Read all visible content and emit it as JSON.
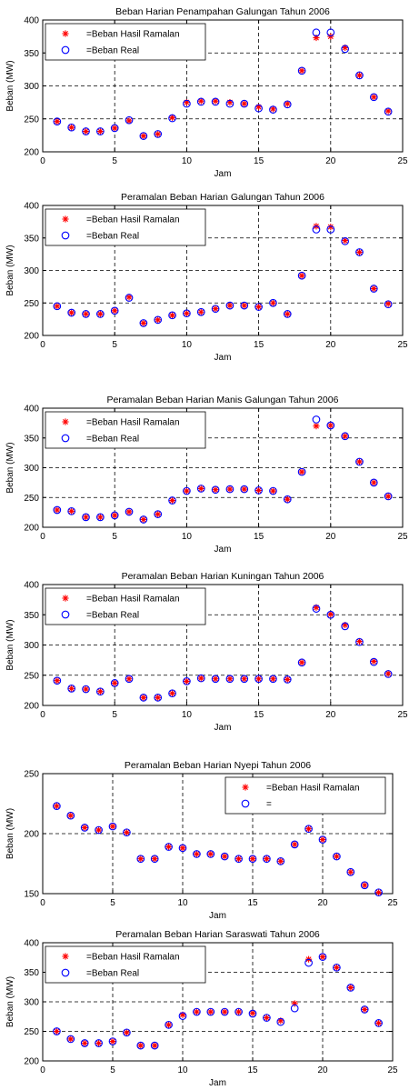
{
  "chart_data": [
    {
      "type": "scatter",
      "title": "Beban Harian Penampahan Galungan Tahun 2006",
      "xlabel": "Jam",
      "ylabel": "Beban (MW)",
      "xlim": [
        0,
        25
      ],
      "ylim": [
        200,
        400
      ],
      "xticks": [
        "0",
        "5",
        "10",
        "15",
        "20",
        "25"
      ],
      "yticks": [
        "200",
        "250",
        "300",
        "350",
        "400"
      ],
      "grid": true,
      "legend_placement": "top-left",
      "series": [
        {
          "name": "=Beban Hasil Ramalan",
          "marker": "star",
          "color": "#ff0000",
          "x": [
            1,
            2,
            3,
            4,
            5,
            6,
            7,
            8,
            9,
            10,
            11,
            12,
            13,
            14,
            15,
            16,
            17,
            18,
            19,
            20,
            21,
            22,
            23,
            24
          ],
          "y": [
            246,
            237,
            231,
            231,
            236,
            247,
            224,
            227,
            252,
            275,
            277,
            277,
            275,
            273,
            268,
            265,
            273,
            323,
            373,
            375,
            358,
            316,
            283,
            262
          ]
        },
        {
          "name": "=Beban Real",
          "marker": "circle",
          "color": "#0000ff",
          "x": [
            1,
            2,
            3,
            4,
            5,
            6,
            7,
            8,
            9,
            10,
            11,
            12,
            13,
            14,
            15,
            16,
            17,
            18,
            19,
            20,
            21,
            22,
            23,
            24
          ],
          "y": [
            246,
            237,
            231,
            231,
            236,
            248,
            224,
            227,
            251,
            273,
            276,
            276,
            273,
            273,
            266,
            264,
            272,
            323,
            381,
            381,
            356,
            316,
            283,
            261
          ]
        }
      ]
    },
    {
      "type": "scatter",
      "title": "Peramalan Beban Harian Galungan Tahun 2006",
      "xlabel": "Jam",
      "ylabel": "Beban (MW)",
      "xlim": [
        0,
        25
      ],
      "ylim": [
        200,
        400
      ],
      "xticks": [
        "0",
        "5",
        "10",
        "15",
        "20",
        "25"
      ],
      "yticks": [
        "200",
        "250",
        "300",
        "350",
        "400"
      ],
      "grid": true,
      "legend_placement": "top-left",
      "series": [
        {
          "name": "=Beban Hasil Ramalan",
          "marker": "star",
          "color": "#ff0000",
          "x": [
            1,
            2,
            3,
            4,
            5,
            6,
            7,
            8,
            9,
            10,
            11,
            12,
            13,
            14,
            15,
            16,
            17,
            18,
            19,
            20,
            21,
            22,
            23,
            24
          ],
          "y": [
            245,
            235,
            233,
            233,
            238,
            259,
            219,
            224,
            231,
            234,
            236,
            241,
            246,
            246,
            244,
            250,
            233,
            292,
            368,
            367,
            346,
            328,
            272,
            249
          ]
        },
        {
          "name": "=Beban Real",
          "marker": "circle",
          "color": "#0000ff",
          "x": [
            1,
            2,
            3,
            4,
            5,
            6,
            7,
            8,
            9,
            10,
            11,
            12,
            13,
            14,
            15,
            16,
            17,
            18,
            19,
            20,
            21,
            22,
            23,
            24
          ],
          "y": [
            245,
            235,
            233,
            233,
            238,
            258,
            219,
            224,
            231,
            234,
            236,
            241,
            246,
            246,
            244,
            250,
            233,
            292,
            363,
            363,
            345,
            328,
            272,
            248
          ]
        }
      ]
    },
    {
      "type": "scatter",
      "title": "Peramalan Beban Harian Manis Galungan Tahun 2006",
      "xlabel": "Jam",
      "ylabel": "Beban (MW)",
      "xlim": [
        0,
        25
      ],
      "ylim": [
        200,
        400
      ],
      "xticks": [
        "0",
        "5",
        "10",
        "15",
        "20",
        "25"
      ],
      "yticks": [
        "200",
        "250",
        "300",
        "350",
        "400"
      ],
      "grid": true,
      "legend_placement": "top-left",
      "series": [
        {
          "name": "=Beban Hasil Ramalan",
          "marker": "star",
          "color": "#ff0000",
          "x": [
            1,
            2,
            3,
            4,
            5,
            6,
            7,
            8,
            9,
            10,
            11,
            12,
            13,
            14,
            15,
            16,
            17,
            18,
            19,
            20,
            21,
            22,
            23,
            24
          ],
          "y": [
            229,
            227,
            217,
            217,
            220,
            226,
            213,
            222,
            245,
            261,
            265,
            263,
            264,
            264,
            262,
            261,
            247,
            293,
            370,
            371,
            353,
            310,
            275,
            252
          ]
        },
        {
          "name": "=Beban Real",
          "marker": "circle",
          "color": "#0000ff",
          "x": [
            1,
            2,
            3,
            4,
            5,
            6,
            7,
            8,
            9,
            10,
            11,
            12,
            13,
            14,
            15,
            16,
            17,
            18,
            19,
            20,
            21,
            22,
            23,
            24
          ],
          "y": [
            229,
            227,
            217,
            217,
            220,
            226,
            213,
            222,
            245,
            261,
            265,
            263,
            264,
            264,
            262,
            261,
            247,
            293,
            381,
            371,
            353,
            310,
            275,
            252
          ]
        }
      ]
    },
    {
      "type": "scatter",
      "title": "Peramalan Beban Harian Kuningan Tahun 2006",
      "xlabel": "Jam",
      "ylabel": "Beban (MW)",
      "xlim": [
        0,
        25
      ],
      "ylim": [
        200,
        400
      ],
      "xticks": [
        "0",
        "5",
        "10",
        "15",
        "20",
        "25"
      ],
      "yticks": [
        "200",
        "250",
        "300",
        "350",
        "400"
      ],
      "grid": true,
      "legend_placement": "top-left",
      "series": [
        {
          "name": "=Beban Hasil Ramalan",
          "marker": "star",
          "color": "#ff0000",
          "x": [
            1,
            2,
            3,
            4,
            5,
            6,
            7,
            8,
            9,
            10,
            11,
            12,
            13,
            14,
            15,
            16,
            17,
            18,
            19,
            20,
            21,
            22,
            23,
            24
          ],
          "y": [
            241,
            228,
            227,
            223,
            237,
            244,
            213,
            213,
            220,
            240,
            245,
            244,
            244,
            244,
            244,
            244,
            243,
            271,
            362,
            351,
            333,
            306,
            273,
            253
          ]
        },
        {
          "name": "=Beban Real",
          "marker": "circle",
          "color": "#0000ff",
          "x": [
            1,
            2,
            3,
            4,
            5,
            6,
            7,
            8,
            9,
            10,
            11,
            12,
            13,
            14,
            15,
            16,
            17,
            18,
            19,
            20,
            21,
            22,
            23,
            24
          ],
          "y": [
            241,
            228,
            227,
            223,
            237,
            244,
            213,
            213,
            220,
            240,
            245,
            244,
            244,
            244,
            244,
            244,
            243,
            271,
            360,
            350,
            331,
            305,
            272,
            252
          ]
        }
      ]
    },
    {
      "type": "scatter",
      "title": "Peramalan Beban Harian Nyepi Tahun 2006",
      "xlabel": "Jam",
      "ylabel": "Beban (MW)",
      "xlim": [
        0,
        25
      ],
      "ylim": [
        150,
        250
      ],
      "xticks": [
        "0",
        "5",
        "10",
        "15",
        "20",
        "25"
      ],
      "yticks": [
        "150",
        "200",
        "250"
      ],
      "grid": true,
      "legend_placement": "top-right",
      "series": [
        {
          "name": "=Beban Hasil Ramalan",
          "marker": "star",
          "color": "#ff0000",
          "x": [
            1,
            2,
            3,
            4,
            5,
            6,
            7,
            8,
            9,
            10,
            11,
            12,
            13,
            14,
            15,
            16,
            17,
            18,
            19,
            20,
            21,
            22,
            23,
            24
          ],
          "y": [
            223,
            215,
            205,
            203,
            206,
            201,
            179,
            179,
            189,
            188,
            183,
            183,
            181,
            179,
            179,
            179,
            177,
            191,
            204,
            195,
            181,
            168,
            157,
            151
          ]
        },
        {
          "name": "=",
          "marker": "circle",
          "color": "#0000ff",
          "x": [
            1,
            2,
            3,
            4,
            5,
            6,
            7,
            8,
            9,
            10,
            11,
            12,
            13,
            14,
            15,
            16,
            17,
            18,
            19,
            20,
            21,
            22,
            23,
            24
          ],
          "y": [
            223,
            215,
            205,
            203,
            206,
            201,
            179,
            179,
            189,
            188,
            183,
            183,
            181,
            179,
            179,
            179,
            177,
            191,
            204,
            195,
            181,
            168,
            157,
            151
          ]
        }
      ]
    },
    {
      "type": "scatter",
      "title": "Peramalan Beban Harian Saraswati Tahun 2006",
      "xlabel": "Jam",
      "ylabel": "Beban (MW)",
      "xlim": [
        0,
        25
      ],
      "ylim": [
        200,
        400
      ],
      "xticks": [
        "0",
        "5",
        "10",
        "15",
        "20",
        "25"
      ],
      "yticks": [
        "200",
        "250",
        "300",
        "350",
        "400"
      ],
      "grid": true,
      "legend_placement": "top-left",
      "series": [
        {
          "name": "=Beban Hasil Ramalan",
          "marker": "star",
          "color": "#ff0000",
          "x": [
            1,
            2,
            3,
            4,
            5,
            6,
            7,
            8,
            9,
            10,
            11,
            12,
            13,
            14,
            15,
            16,
            17,
            18,
            19,
            20,
            21,
            22,
            23,
            24
          ],
          "y": [
            250,
            237,
            230,
            230,
            233,
            248,
            226,
            226,
            261,
            278,
            283,
            283,
            283,
            283,
            281,
            273,
            268,
            297,
            372,
            376,
            358,
            324,
            287,
            264
          ]
        },
        {
          "name": "=Beban Real",
          "marker": "circle",
          "color": "#0000ff",
          "x": [
            1,
            2,
            3,
            4,
            5,
            6,
            7,
            8,
            9,
            10,
            11,
            12,
            13,
            14,
            15,
            16,
            17,
            18,
            19,
            20,
            21,
            22,
            23,
            24
          ],
          "y": [
            250,
            237,
            230,
            230,
            233,
            248,
            226,
            226,
            261,
            276,
            283,
            283,
            283,
            283,
            280,
            273,
            266,
            289,
            366,
            376,
            358,
            324,
            287,
            264
          ]
        }
      ]
    }
  ]
}
